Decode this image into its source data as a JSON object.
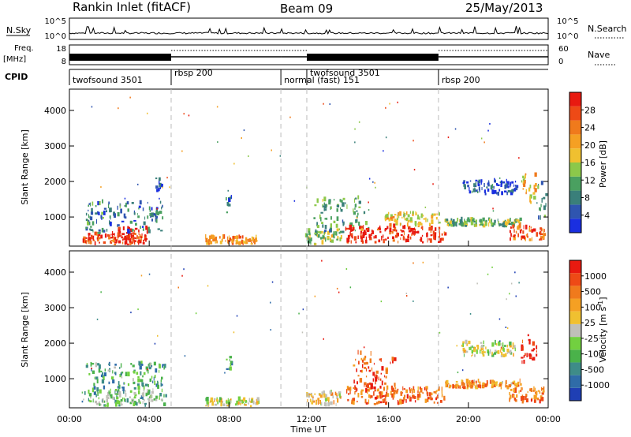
{
  "header": {
    "station": "Rankin Inlet (fitACF)",
    "beam": "Beam 09",
    "date": "25/May/2013"
  },
  "noise_panel": {
    "left_label": "N.Sky",
    "right_label": "N.Search",
    "left_ticks": [
      "10^5",
      "10^0"
    ],
    "right_ticks": [
      "10^5",
      "10^0"
    ]
  },
  "freq_panel": {
    "left_label_1": "Freq.",
    "left_label_2": "[MHz]",
    "right_label": "Nave",
    "left_ticks": [
      "18",
      "8"
    ],
    "right_ticks": [
      "60",
      "0"
    ]
  },
  "cpid_panel": {
    "label": "CPID",
    "segments": [
      {
        "name": "twofsound 3501",
        "start_hour": 0.0,
        "end_hour": 5.1
      },
      {
        "name": "rbsp 200",
        "start_hour": 5.1,
        "end_hour": 10.6
      },
      {
        "name": "normal (fast) 151",
        "start_hour": 10.6,
        "end_hour": 11.9
      },
      {
        "name": "twofsound 3501",
        "start_hour": 11.9,
        "end_hour": 18.5
      },
      {
        "name": "rbsp 200",
        "start_hour": 18.5,
        "end_hour": 24.0
      }
    ]
  },
  "mode_change_hours": [
    5.1,
    10.6,
    11.9,
    18.5
  ],
  "time_axis": {
    "xlabel": "Time UT",
    "ticks": [
      "00:00",
      "04:00",
      "08:00",
      "12:00",
      "16:00",
      "20:00",
      "00:00"
    ]
  },
  "range_axis": {
    "ylabel": "Slant Range [km]",
    "ticks": [
      "1000",
      "2000",
      "3000",
      "4000"
    ]
  },
  "chart_data": [
    {
      "type": "heatmap",
      "title": "Power",
      "xlabel": "",
      "ylabel": "Slant Range [km]",
      "xlim": [
        0,
        24
      ],
      "ylim": [
        180,
        4600
      ],
      "colorbar": {
        "label": "Power [dB]",
        "ticks": [
          "4",
          "8",
          "12",
          "16",
          "20",
          "24",
          "28"
        ],
        "colors": [
          "#1a2fe0",
          "#2f55b0",
          "#3a7f7a",
          "#4aa060",
          "#8cc84a",
          "#f0c030",
          "#f5a023",
          "#f07a1c",
          "#ee4a16",
          "#e81a10"
        ]
      },
      "echo_regions": [
        {
          "t0": 0.6,
          "t1": 3.8,
          "r0": 200,
          "r1": 500,
          "level": 0.85
        },
        {
          "t0": 2.4,
          "t1": 3.9,
          "r0": 300,
          "r1": 650,
          "level": 0.95
        },
        {
          "t0": 0.8,
          "t1": 4.8,
          "r0": 500,
          "r1": 1400,
          "level": 0.25
        },
        {
          "t0": 4.3,
          "t1": 4.6,
          "r0": 1700,
          "r1": 2100,
          "level": 0.15
        },
        {
          "t0": 7.8,
          "t1": 8.1,
          "r0": 1100,
          "r1": 1600,
          "level": 0.2
        },
        {
          "t0": 6.8,
          "t1": 9.4,
          "r0": 200,
          "r1": 400,
          "level": 0.7
        },
        {
          "t0": 11.8,
          "t1": 13.6,
          "r0": 200,
          "r1": 600,
          "level": 0.45
        },
        {
          "t0": 12.2,
          "t1": 15.0,
          "r0": 500,
          "r1": 1500,
          "level": 0.35
        },
        {
          "t0": 13.8,
          "t1": 18.8,
          "r0": 250,
          "r1": 700,
          "level": 0.95
        },
        {
          "t0": 15.8,
          "t1": 18.5,
          "r0": 700,
          "r1": 1100,
          "level": 0.55
        },
        {
          "t0": 18.8,
          "t1": 22.6,
          "r0": 700,
          "r1": 900,
          "level": 0.4
        },
        {
          "t0": 19.6,
          "t1": 22.4,
          "r0": 1600,
          "r1": 2000,
          "level": 0.15
        },
        {
          "t0": 22.0,
          "t1": 23.8,
          "r0": 300,
          "r1": 700,
          "level": 0.8
        },
        {
          "t0": 22.6,
          "t1": 23.4,
          "r0": 1300,
          "r1": 2200,
          "level": 0.6
        },
        {
          "t0": 23.4,
          "t1": 23.9,
          "r0": 800,
          "r1": 2000,
          "level": 0.3
        }
      ]
    },
    {
      "type": "heatmap",
      "title": "Velocity",
      "xlabel": "Time UT",
      "ylabel": "Slant Range [km]",
      "xlim": [
        0,
        24
      ],
      "ylim": [
        180,
        4600
      ],
      "colorbar": {
        "label": "Velocity [m s^-1]",
        "ticks": [
          "1000",
          "500",
          "100",
          "25",
          "-25",
          "-100",
          "-500",
          "-1000"
        ],
        "colors": [
          "#1f3fb4",
          "#2f6ca8",
          "#3e8c88",
          "#4ab24a",
          "#72d040",
          "#c0c0b8",
          "#f0c030",
          "#f5a023",
          "#f07a1c",
          "#ee4a16",
          "#e81a10"
        ]
      },
      "echo_regions": [
        {
          "t0": 0.6,
          "t1": 4.8,
          "r0": 200,
          "r1": 650,
          "level": 0.35
        },
        {
          "t0": 0.8,
          "t1": 4.8,
          "r0": 650,
          "r1": 1400,
          "level": 0.3
        },
        {
          "t0": 7.8,
          "t1": 8.1,
          "r0": 1100,
          "r1": 1600,
          "level": 0.25
        },
        {
          "t0": 6.8,
          "t1": 9.4,
          "r0": 200,
          "r1": 400,
          "level": 0.5
        },
        {
          "t0": 11.8,
          "t1": 13.6,
          "r0": 200,
          "r1": 600,
          "level": 0.6
        },
        {
          "t0": 13.8,
          "t1": 18.8,
          "r0": 250,
          "r1": 700,
          "level": 0.8
        },
        {
          "t0": 14.2,
          "t1": 16.4,
          "r0": 700,
          "r1": 1700,
          "level": 0.85
        },
        {
          "t0": 18.8,
          "t1": 22.6,
          "r0": 700,
          "r1": 900,
          "level": 0.7
        },
        {
          "t0": 19.6,
          "t1": 22.4,
          "r0": 1600,
          "r1": 2000,
          "level": 0.5
        },
        {
          "t0": 22.0,
          "t1": 23.8,
          "r0": 300,
          "r1": 700,
          "level": 0.8
        },
        {
          "t0": 22.6,
          "t1": 23.4,
          "r0": 1300,
          "r1": 2200,
          "level": 0.95
        }
      ]
    }
  ]
}
